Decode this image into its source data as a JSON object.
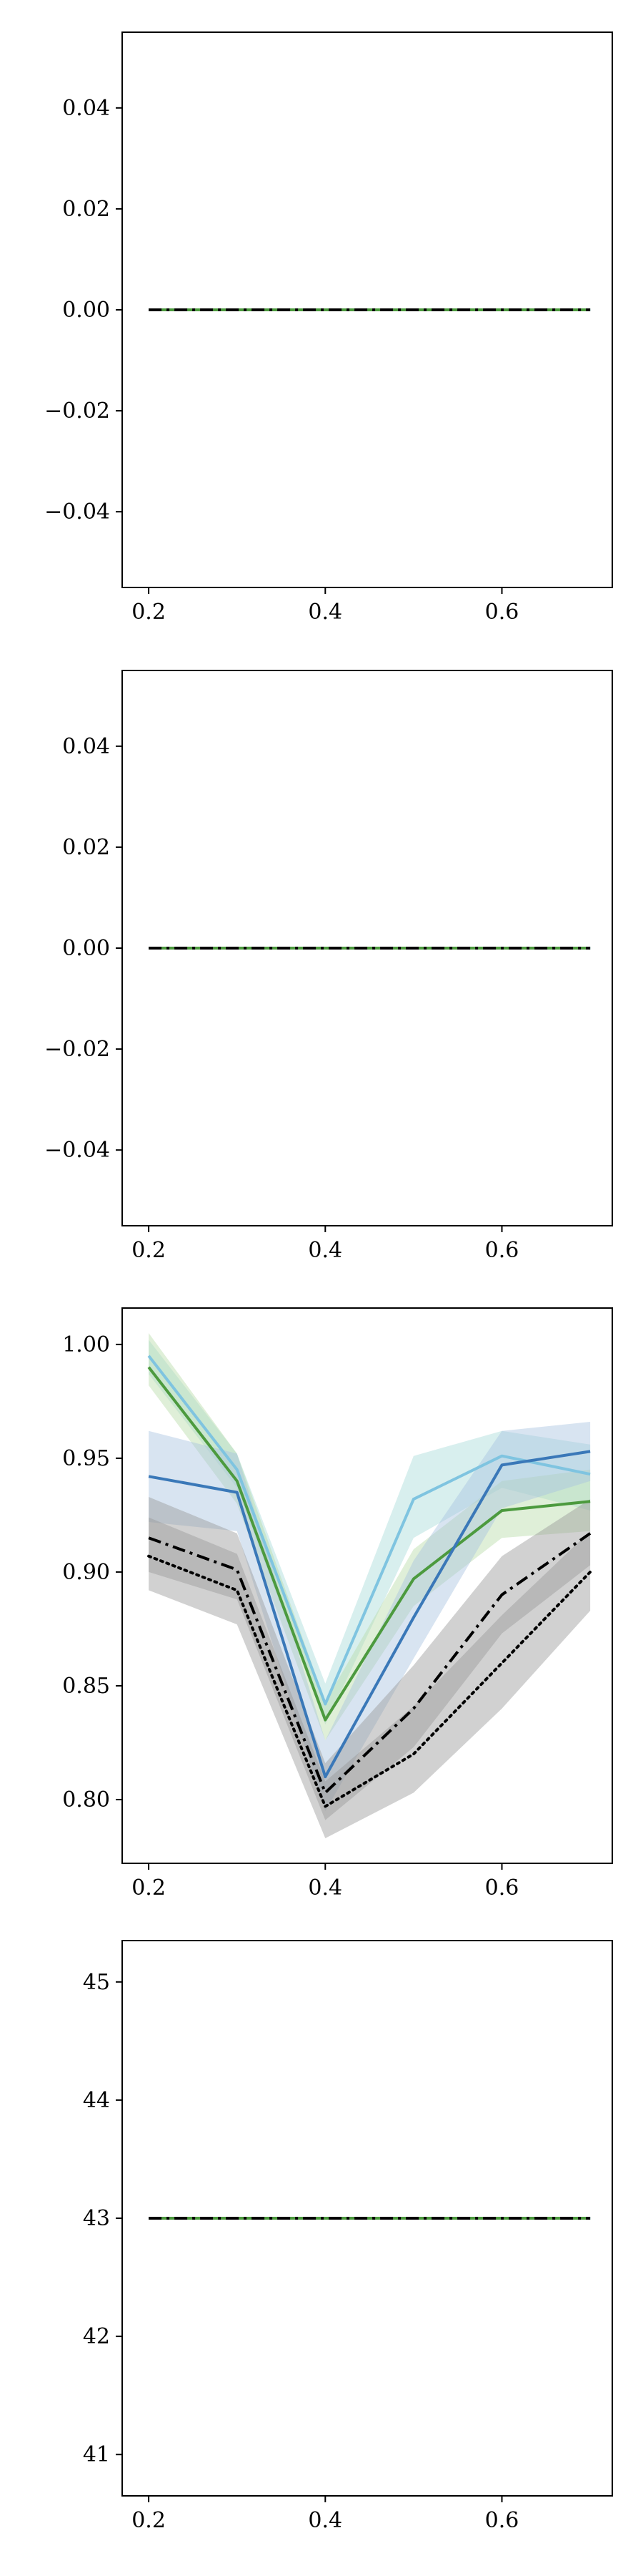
{
  "chart_data": [
    {
      "type": "line",
      "xlim": [
        0.17,
        0.725
      ],
      "ylim": [
        -0.055,
        0.055
      ],
      "xticks": [
        0.2,
        0.4,
        0.6
      ],
      "xtick_labels": [
        "0.2",
        "0.4",
        "0.6"
      ],
      "yticks": [
        -0.04,
        -0.02,
        0.0,
        0.02,
        0.04
      ],
      "ytick_labels": [
        "−0.04",
        "−0.02",
        "0.00",
        "0.02",
        "0.04"
      ],
      "grid": false,
      "x": [
        0.2,
        0.3,
        0.4,
        0.5,
        0.6,
        0.7
      ],
      "series": [
        {
          "style": "solid",
          "color": "#7fc4e0",
          "values": [
            0,
            0,
            0,
            0,
            0,
            0
          ]
        },
        {
          "style": "solid",
          "color": "#3a78b8",
          "values": [
            0,
            0,
            0,
            0,
            0,
            0
          ]
        },
        {
          "style": "solid",
          "color": "#4c9a3e",
          "values": [
            0,
            0,
            0,
            0,
            0,
            0
          ]
        },
        {
          "style": "dashdot",
          "color": "#000000",
          "values": [
            0,
            0,
            0,
            0,
            0,
            0
          ]
        }
      ]
    },
    {
      "type": "line",
      "xlim": [
        0.17,
        0.725
      ],
      "ylim": [
        -0.055,
        0.055
      ],
      "xticks": [
        0.2,
        0.4,
        0.6
      ],
      "xtick_labels": [
        "0.2",
        "0.4",
        "0.6"
      ],
      "yticks": [
        -0.04,
        -0.02,
        0.0,
        0.02,
        0.04
      ],
      "ytick_labels": [
        "−0.04",
        "−0.02",
        "0.00",
        "0.02",
        "0.04"
      ],
      "grid": false,
      "x": [
        0.2,
        0.3,
        0.4,
        0.5,
        0.6,
        0.7
      ],
      "series": [
        {
          "style": "solid",
          "color": "#7fc4e0",
          "values": [
            0,
            0,
            0,
            0,
            0,
            0
          ]
        },
        {
          "style": "solid",
          "color": "#3a78b8",
          "values": [
            0,
            0,
            0,
            0,
            0,
            0
          ]
        },
        {
          "style": "solid",
          "color": "#4c9a3e",
          "values": [
            0,
            0,
            0,
            0,
            0,
            0
          ]
        },
        {
          "style": "dashdot",
          "color": "#000000",
          "values": [
            0,
            0,
            0,
            0,
            0,
            0
          ]
        }
      ]
    },
    {
      "type": "line",
      "xlim": [
        0.17,
        0.725
      ],
      "ylim": [
        0.772,
        1.016
      ],
      "xticks": [
        0.2,
        0.4,
        0.6
      ],
      "xtick_labels": [
        "0.2",
        "0.4",
        "0.6"
      ],
      "yticks": [
        0.8,
        0.85,
        0.9,
        0.95,
        1.0
      ],
      "ytick_labels": [
        "0.80",
        "0.85",
        "0.90",
        "0.95",
        "1.00"
      ],
      "grid": false,
      "x": [
        0.2,
        0.3,
        0.4,
        0.5,
        0.6,
        0.7
      ],
      "series": [
        {
          "style": "solid",
          "color": "#7fc4e0",
          "band_color": "#a8dbd9",
          "values": [
            0.995,
            0.945,
            0.842,
            0.932,
            0.951,
            0.943
          ],
          "lower": [
            0.987,
            0.937,
            0.833,
            0.915,
            0.937,
            0.927
          ],
          "upper": [
            1.002,
            0.952,
            0.851,
            0.951,
            0.962,
            0.956
          ]
        },
        {
          "style": "solid",
          "color": "#4c9a3e",
          "band_color": "#b8dca8",
          "values": [
            0.99,
            0.94,
            0.835,
            0.897,
            0.927,
            0.931
          ],
          "lower": [
            0.982,
            0.93,
            0.826,
            0.885,
            0.915,
            0.918
          ],
          "upper": [
            1.005,
            0.952,
            0.843,
            0.91,
            0.94,
            0.945
          ]
        },
        {
          "style": "solid",
          "color": "#3a78b8",
          "band_color": "#a9c3df",
          "values": [
            0.942,
            0.935,
            0.81,
            0.88,
            0.947,
            0.953
          ],
          "lower": [
            0.922,
            0.918,
            0.795,
            0.862,
            0.928,
            0.94
          ],
          "upper": [
            0.962,
            0.952,
            0.826,
            0.905,
            0.962,
            0.966
          ]
        },
        {
          "style": "dashdot",
          "color": "#000000",
          "band_color": "#9a9a9a",
          "values": [
            0.915,
            0.901,
            0.803,
            0.84,
            0.89,
            0.917
          ],
          "lower": [
            0.9,
            0.888,
            0.791,
            0.823,
            0.873,
            0.903
          ],
          "upper": [
            0.933,
            0.917,
            0.816,
            0.859,
            0.907,
            0.932
          ]
        },
        {
          "style": "dotted",
          "color": "#000000",
          "band_color": "#9a9a9a",
          "values": [
            0.907,
            0.892,
            0.797,
            0.82,
            0.86,
            0.9
          ],
          "lower": [
            0.892,
            0.877,
            0.783,
            0.803,
            0.84,
            0.883
          ],
          "upper": [
            0.924,
            0.908,
            0.808,
            0.841,
            0.881,
            0.918
          ]
        }
      ]
    },
    {
      "type": "line",
      "xlim": [
        0.17,
        0.725
      ],
      "ylim": [
        40.65,
        45.35
      ],
      "xticks": [
        0.2,
        0.4,
        0.6
      ],
      "xtick_labels": [
        "0.2",
        "0.4",
        "0.6"
      ],
      "yticks": [
        41,
        42,
        43,
        44,
        45
      ],
      "ytick_labels": [
        "41",
        "42",
        "43",
        "44",
        "45"
      ],
      "grid": false,
      "x": [
        0.2,
        0.3,
        0.4,
        0.5,
        0.6,
        0.7
      ],
      "series": [
        {
          "style": "solid",
          "color": "#7fc4e0",
          "values": [
            43,
            43,
            43,
            43,
            43,
            43
          ]
        },
        {
          "style": "solid",
          "color": "#3a78b8",
          "values": [
            43,
            43,
            43,
            43,
            43,
            43
          ]
        },
        {
          "style": "solid",
          "color": "#4c9a3e",
          "values": [
            43,
            43,
            43,
            43,
            43,
            43
          ]
        },
        {
          "style": "dashdot",
          "color": "#000000",
          "values": [
            43,
            43,
            43,
            43,
            43,
            43
          ]
        }
      ]
    }
  ]
}
